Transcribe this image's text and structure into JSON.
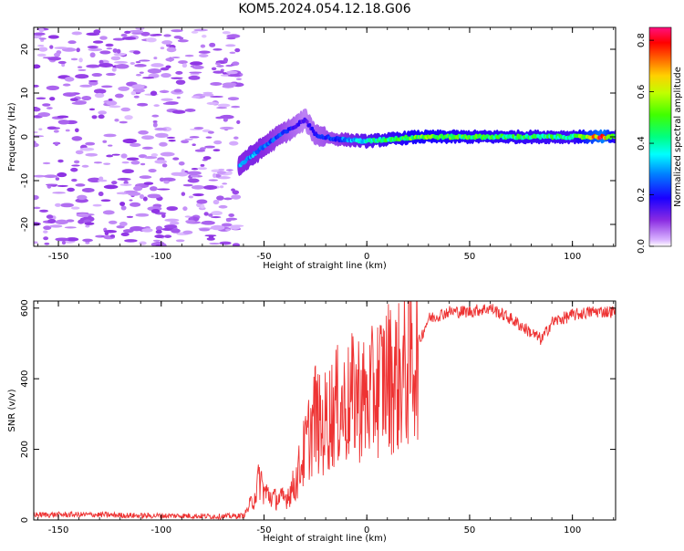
{
  "title": "KOM5.2024.054.12.18.G06",
  "chart_data": [
    {
      "type": "heatmap",
      "xlabel": "Height of straight line (km)",
      "ylabel": "Frequency (Hz)",
      "xlim": [
        -162,
        121
      ],
      "ylim": [
        -25,
        25
      ],
      "xticks": [
        -150,
        -100,
        -50,
        0,
        50,
        100
      ],
      "yticks": [
        -20,
        -10,
        0,
        10,
        20
      ],
      "colorbar": {
        "label": "Normalized spectral amplitude",
        "range": [
          0,
          0.85
        ],
        "ticks": [
          0.0,
          0.2,
          0.4,
          0.6,
          0.8
        ]
      },
      "ridge": [
        {
          "x": -62,
          "f": -6.5,
          "amp": 0.3
        },
        {
          "x": -55,
          "f": -4.0,
          "amp": 0.32
        },
        {
          "x": -48,
          "f": -1.5,
          "amp": 0.28
        },
        {
          "x": -42,
          "f": 0.5,
          "amp": 0.25
        },
        {
          "x": -36,
          "f": 2.0,
          "amp": 0.2
        },
        {
          "x": -30,
          "f": 4.0,
          "amp": 0.15
        },
        {
          "x": -25,
          "f": 0.5,
          "amp": 0.2
        },
        {
          "x": -15,
          "f": -0.5,
          "amp": 0.25
        },
        {
          "x": 0,
          "f": -1.0,
          "amp": 0.4
        },
        {
          "x": 25,
          "f": 0.0,
          "amp": 0.55
        },
        {
          "x": 50,
          "f": 0.0,
          "amp": 0.5
        },
        {
          "x": 75,
          "f": 0.0,
          "amp": 0.48
        },
        {
          "x": 100,
          "f": 0.0,
          "amp": 0.45
        },
        {
          "x": 115,
          "f": 0.0,
          "amp": 0.8
        },
        {
          "x": 121,
          "f": 0.0,
          "amp": 0.45
        }
      ]
    },
    {
      "type": "line",
      "xlabel": "Height of straight line (km)",
      "ylabel": "SNR (v/v)",
      "xlim": [
        -162,
        121
      ],
      "ylim": [
        0,
        620
      ],
      "xticks": [
        -150,
        -100,
        -50,
        0,
        50,
        100
      ],
      "yticks": [
        0,
        200,
        400,
        600
      ],
      "series": [
        {
          "color": "#ee3333",
          "x": [
            -162,
            -150,
            -130,
            -110,
            -90,
            -70,
            -60,
            -55,
            -52,
            -50,
            -45,
            -40,
            -35,
            -30,
            -25,
            -22,
            -20,
            -15,
            -10,
            -5,
            0,
            5,
            10,
            15,
            20,
            25,
            30,
            40,
            50,
            60,
            70,
            80,
            85,
            90,
            100,
            110,
            121
          ],
          "y": [
            15,
            15,
            15,
            12,
            12,
            10,
            12,
            60,
            120,
            80,
            60,
            60,
            100,
            200,
            300,
            250,
            280,
            320,
            320,
            360,
            330,
            380,
            410,
            400,
            430,
            500,
            570,
            590,
            590,
            600,
            570,
            530,
            510,
            560,
            580,
            590,
            590
          ]
        }
      ]
    }
  ]
}
